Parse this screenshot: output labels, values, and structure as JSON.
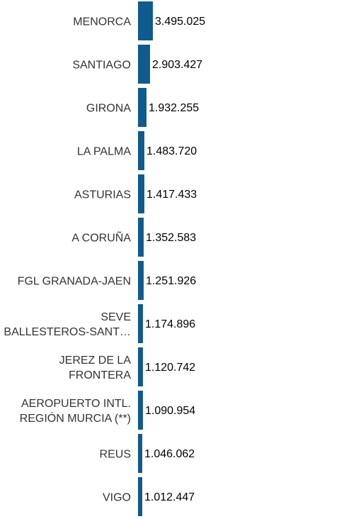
{
  "chart_data": {
    "type": "bar",
    "orientation": "horizontal",
    "categories": [
      "MENORCA",
      "SANTIAGO",
      "GIRONA",
      "LA PALMA",
      "ASTURIAS",
      "A CORUÑA",
      "FGL GRANADA-JAEN",
      "SEVE BALLESTEROS-SANT…",
      "JEREZ DE LA FRONTERA",
      "AEROPUERTO INTL. REGIÓN MURCIA (**)",
      "REUS",
      "VIGO"
    ],
    "category_lines": [
      [
        "MENORCA"
      ],
      [
        "SANTIAGO"
      ],
      [
        "GIRONA"
      ],
      [
        "LA PALMA"
      ],
      [
        "ASTURIAS"
      ],
      [
        "A CORUÑA"
      ],
      [
        "FGL GRANADA-JAEN"
      ],
      [
        "SEVE",
        "BALLESTEROS-SANT…"
      ],
      [
        "JEREZ DE LA",
        "FRONTERA"
      ],
      [
        "AEROPUERTO INTL.",
        "REGIÓN MURCIA (**)"
      ],
      [
        "REUS"
      ],
      [
        "VIGO"
      ]
    ],
    "values": [
      3495025,
      2903427,
      1932255,
      1483720,
      1417433,
      1352583,
      1251926,
      1174896,
      1120742,
      1090954,
      1046062,
      1012447
    ],
    "value_labels": [
      "3.495.025",
      "2.903.427",
      "1.932.255",
      "1.483.720",
      "1.417.433",
      "1.352.583",
      "1.251.926",
      "1.174.896",
      "1.120.742",
      "1.090.954",
      "1.046.062",
      "1.012.447"
    ],
    "xlim": [
      0,
      290000000
    ],
    "bar_color": "#0f5a8f",
    "title": "",
    "xlabel": "",
    "ylabel": ""
  }
}
